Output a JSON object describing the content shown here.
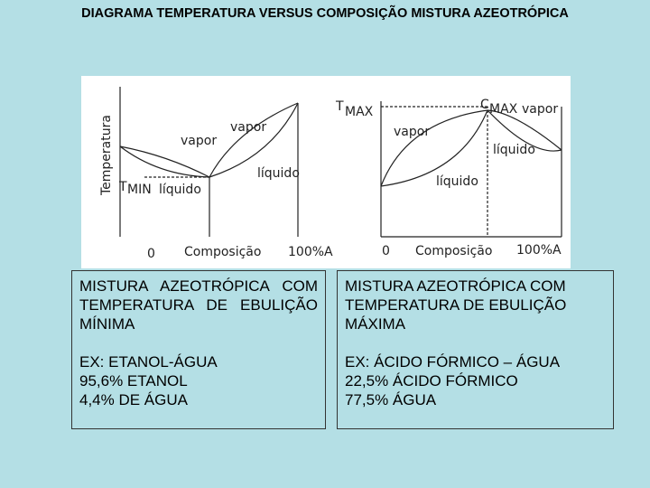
{
  "header": {
    "title": "DIAGRAMA TEMPERATURA VERSUS COMPOSIÇÃO MISTURA AZEOTRÓPICA"
  },
  "diagrams": [
    {
      "y_axis_label": "Temperatura",
      "level_symbol": "T",
      "level_subscript": "MIN",
      "labels": [
        "vapor",
        "vapor",
        "líquido",
        "líquido"
      ],
      "x_start": "0",
      "x_axis_label": "Composição",
      "x_end": "100%A"
    },
    {
      "level_symbol": "T",
      "level_subscript": "MAX",
      "point_symbol": "C",
      "point_subscript": "MAX",
      "labels": [
        "vapor",
        "vapor",
        "líquido",
        "líquido"
      ],
      "x_start": "0",
      "x_axis_label": "Composição",
      "x_end": "100%A"
    }
  ],
  "boxes": [
    {
      "heading": "MISTURA AZEOTRÓPICA COM TEMPERATURA DE EBULIÇÃO MÍNIMA",
      "example": [
        "EX: ETANOL-ÁGUA",
        "95,6% ETANOL",
        "4,4% DE ÁGUA"
      ]
    },
    {
      "heading": "MISTURA AZEOTRÓPICA COM TEMPERATURA DE EBULIÇÃO MÁXIMA",
      "example": [
        "EX: ÁCIDO FÓRMICO – ÁGUA",
        "22,5% ÁCIDO FÓRMICO",
        "77,5% ÁGUA"
      ]
    }
  ]
}
